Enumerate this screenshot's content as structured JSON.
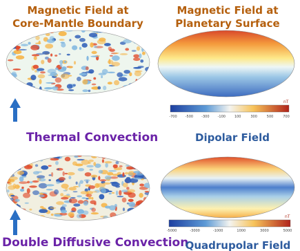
{
  "panels": [
    {
      "title": [
        "Magnetic Field at",
        "Core-Mantle Boundary"
      ]
    },
    {
      "title": [
        "Magnetic Field at",
        "Planetary Surface"
      ]
    }
  ],
  "rows": [
    {
      "left_label": "Thermal Convection",
      "right_label": "Dipolar Field",
      "colorbar": {
        "ticks": [
          -700,
          -500,
          -300,
          -100,
          100,
          300,
          500,
          700
        ],
        "unit": "nT"
      }
    },
    {
      "left_label": "Double Diffusive Convection",
      "right_label": "Quadrupolar Field",
      "colorbar": {
        "ticks": [
          -5000,
          -3000,
          -1000,
          1000,
          3000,
          5000
        ],
        "unit": "nT"
      }
    }
  ]
}
